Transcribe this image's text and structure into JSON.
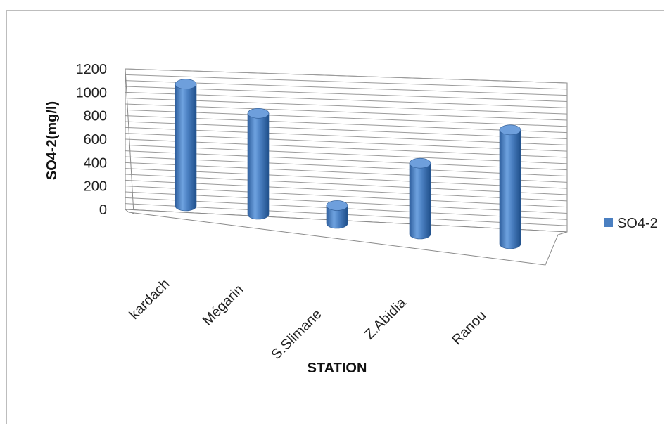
{
  "chart_data": {
    "type": "bar",
    "subtype": "3d-cylinder",
    "categories": [
      "kardach",
      "Mégarin",
      "S.Slimane",
      "Z.Abidia",
      "Ranou"
    ],
    "series": [
      {
        "name": "SO4-2",
        "values": [
          1060,
          890,
          160,
          640,
          1060
        ],
        "color": "#4a7fc1"
      }
    ],
    "xlabel": "STATION",
    "ylabel": "SO4-2(mg/l)",
    "ylim": [
      0,
      1200
    ],
    "yticks": [
      "0",
      "200",
      "400",
      "600",
      "800",
      "1000",
      "1200"
    ],
    "grid": true,
    "legend": "right"
  }
}
